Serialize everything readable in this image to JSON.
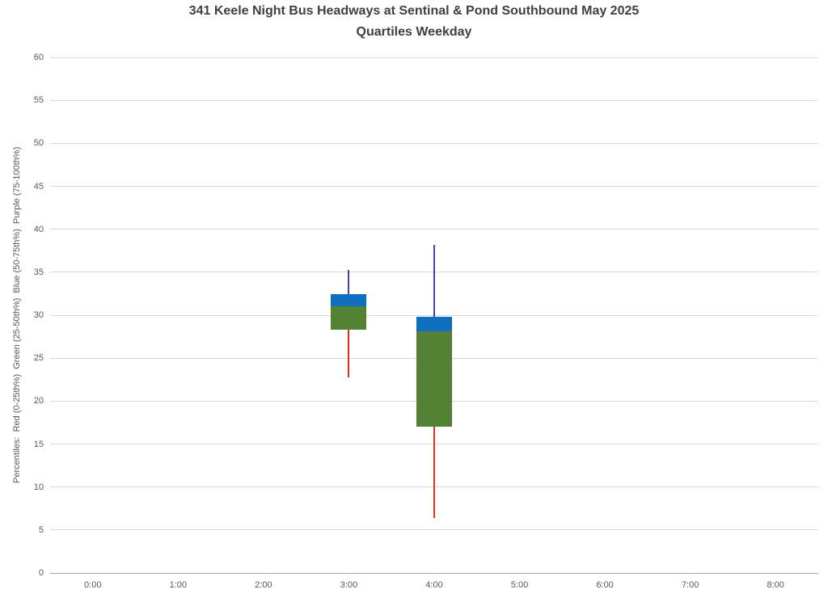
{
  "chart_data": {
    "type": "box",
    "title": "341 Keele Night Bus Headways at Sentinal & Pond Southbound May 2025",
    "subtitle": "Quartiles Weekday",
    "xlabel": "",
    "ylabel": "Percentiles:  Red (0-25th%)  Green (25-50th%)  Blue (50-75th%)  Purple (75-100th%)",
    "categories": [
      "0:00",
      "1:00",
      "2:00",
      "3:00",
      "4:00",
      "5:00",
      "6:00",
      "7:00",
      "8:00"
    ],
    "ylim": [
      0,
      60
    ],
    "ytick_step": 5,
    "y_ticks": [
      0,
      5,
      10,
      15,
      20,
      25,
      30,
      35,
      40,
      45,
      50,
      55,
      60
    ],
    "grid": true,
    "legend_position": "none",
    "colors": {
      "red": "#e03127",
      "green": "#548235",
      "blue": "#1070c0",
      "purple": "#4d3da8",
      "gridline": "#d9d9d9",
      "axis_line": "#a6a6a6",
      "tick_text": "#595959",
      "title_text": "#404040"
    },
    "boxes": [
      {
        "category": "3:00",
        "min": 22.8,
        "q1": 28.3,
        "median": 31.0,
        "q3": 32.4,
        "max": 35.3
      },
      {
        "category": "4:00",
        "min": 6.4,
        "q1": 17.0,
        "median": 28.1,
        "q3": 29.8,
        "max": 38.2
      }
    ]
  }
}
